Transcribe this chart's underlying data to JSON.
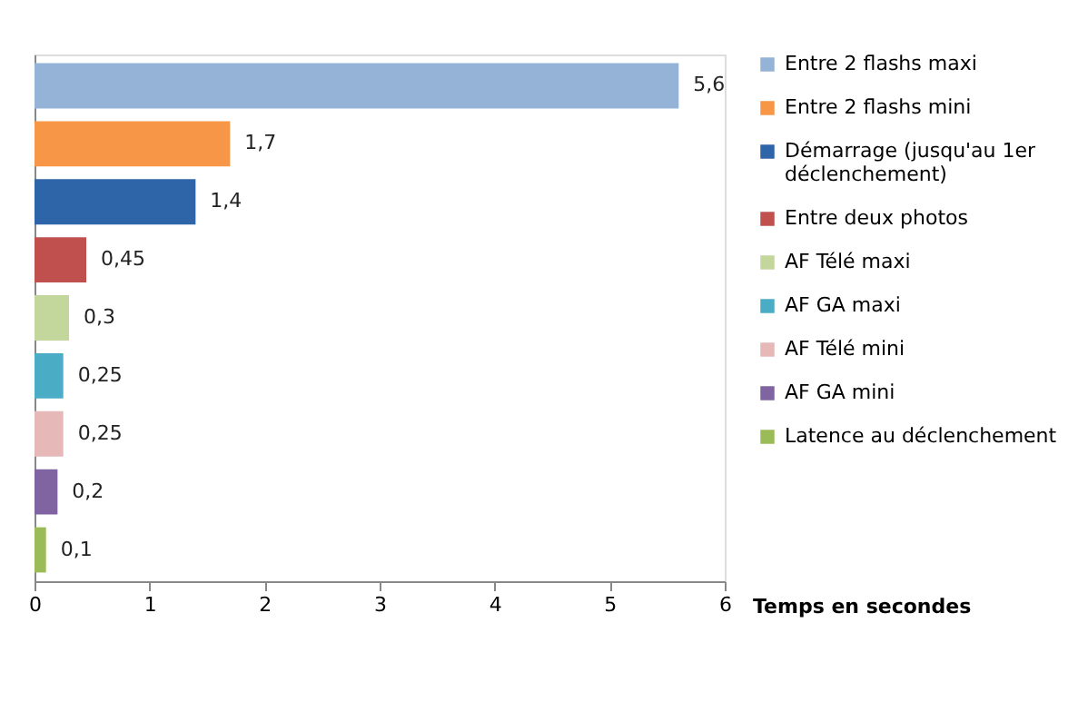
{
  "chart_data": {
    "type": "bar",
    "orientation": "horizontal",
    "xlabel": "Temps en secondes",
    "categories": [
      null,
      null,
      null,
      null,
      null,
      null,
      null,
      null,
      null
    ],
    "series": [
      {
        "name": "Entre 2 flashs maxi",
        "color": "#95b3d7",
        "values": [
          5.6,
          null,
          null,
          null,
          null,
          null,
          null,
          null,
          null
        ],
        "value_labels": [
          "5,6",
          null,
          null,
          null,
          null,
          null,
          null,
          null,
          null
        ]
      },
      {
        "name": "Entre 2 flashs mini",
        "color": "#f79646",
        "values": [
          null,
          1.7,
          null,
          null,
          null,
          null,
          null,
          null,
          null
        ],
        "value_labels": [
          null,
          "1,7",
          null,
          null,
          null,
          null,
          null,
          null,
          null
        ]
      },
      {
        "name": "Démarrage (jusqu'au 1er déclenchement)",
        "color": "#2e64a8",
        "values": [
          null,
          null,
          1.4,
          null,
          null,
          null,
          null,
          null,
          null
        ],
        "value_labels": [
          null,
          null,
          "1,4",
          null,
          null,
          null,
          null,
          null,
          null
        ]
      },
      {
        "name": "Entre deux photos",
        "color": "#c0504d",
        "values": [
          null,
          null,
          null,
          0.45,
          null,
          null,
          null,
          null,
          null
        ],
        "value_labels": [
          null,
          null,
          null,
          "0,45",
          null,
          null,
          null,
          null,
          null
        ]
      },
      {
        "name": "AF Télé maxi",
        "color": "#c3d69b",
        "values": [
          null,
          null,
          null,
          null,
          0.3,
          null,
          null,
          null,
          null
        ],
        "value_labels": [
          null,
          null,
          null,
          null,
          "0,3",
          null,
          null,
          null,
          null
        ]
      },
      {
        "name": "AF GA maxi",
        "color": "#4bacc6",
        "values": [
          null,
          null,
          null,
          null,
          null,
          0.25,
          null,
          null,
          null
        ],
        "value_labels": [
          null,
          null,
          null,
          null,
          null,
          "0,25",
          null,
          null,
          null
        ]
      },
      {
        "name": "AF Télé mini",
        "color": "#e6b9b8",
        "values": [
          null,
          null,
          null,
          null,
          null,
          null,
          0.25,
          null,
          null
        ],
        "value_labels": [
          null,
          null,
          null,
          null,
          null,
          null,
          "0,25",
          null,
          null
        ]
      },
      {
        "name": "AF GA mini",
        "color": "#8064a2",
        "values": [
          null,
          null,
          null,
          null,
          null,
          null,
          null,
          0.2,
          null
        ],
        "value_labels": [
          null,
          null,
          null,
          null,
          null,
          null,
          null,
          "0,2",
          null
        ]
      },
      {
        "name": "Latence au déclenchement",
        "color": "#9bbb59",
        "values": [
          null,
          null,
          null,
          null,
          null,
          null,
          null,
          null,
          0.1
        ],
        "value_labels": [
          null,
          null,
          null,
          null,
          null,
          null,
          null,
          null,
          "0,1"
        ]
      }
    ],
    "xlim": [
      0,
      6
    ],
    "xticks": [
      0,
      1,
      2,
      3,
      4,
      5,
      6
    ],
    "grid": false,
    "legend": "right",
    "tick_labels": "x"
  }
}
